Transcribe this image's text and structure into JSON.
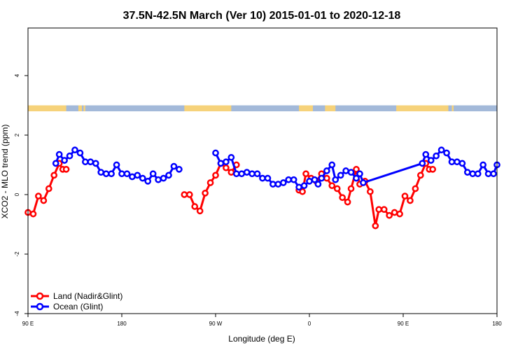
{
  "chart_data": {
    "type": "line",
    "title": "37.5N-42.5N March (Ver 10)   2015-01-01 to 2020-12-18",
    "xlabel": "Longitude (deg E)",
    "ylabel": "XCO2 - MLO trend (ppm)",
    "xlim": [
      -90,
      180
    ],
    "ylim": [
      -4,
      5.6
    ],
    "x_ticks": [
      {
        "value": -90,
        "label": "90 E"
      },
      {
        "value": -36,
        "label": "180"
      },
      {
        "value": 18,
        "label": "90 W"
      },
      {
        "value": 72,
        "label": "0"
      },
      {
        "value": 126,
        "label": "90 E"
      },
      {
        "value": 180,
        "label": "180"
      }
    ],
    "y_ticks": [
      -4,
      -2,
      0,
      2,
      4
    ],
    "grid": false,
    "legend_position": "bottom-left",
    "land_ocean_strip": {
      "y_range": [
        2.8,
        3.0
      ],
      "land_color": "#f6d27a",
      "ocean_color": "#a3b9d9",
      "land_segments": [
        [
          -90,
          -68
        ],
        [
          -61,
          -59
        ],
        [
          -58,
          -57
        ],
        [
          0,
          27
        ],
        [
          66,
          74
        ],
        [
          81,
          87
        ],
        [
          122,
          152
        ],
        [
          154,
          155
        ]
      ]
    },
    "series": [
      {
        "name": "Land (Nadir&Glint)",
        "color": "#ff0000",
        "segments": [
          [
            [
              -90,
              -0.6
            ],
            [
              -87,
              -0.65
            ],
            [
              -84,
              -0.05
            ],
            [
              -81,
              -0.2
            ],
            [
              -78,
              0.2
            ],
            [
              -75,
              0.65
            ],
            [
              -72,
              1.05
            ],
            [
              -70,
              0.85
            ],
            [
              -68,
              0.85
            ]
          ],
          [
            [
              0,
              0.0
            ],
            [
              3,
              0.0
            ],
            [
              6,
              -0.4
            ],
            [
              9,
              -0.55
            ],
            [
              12,
              0.05
            ],
            [
              15,
              0.4
            ],
            [
              18,
              0.65
            ],
            [
              21,
              1.05
            ],
            [
              24,
              0.9
            ],
            [
              27,
              0.75
            ],
            [
              30,
              1.0
            ]
          ],
          [
            [
              66,
              0.15
            ],
            [
              68,
              0.1
            ],
            [
              70,
              0.7
            ],
            [
              73,
              0.55
            ],
            [
              76,
              0.45
            ],
            [
              79,
              0.7
            ],
            [
              82,
              0.55
            ],
            [
              85,
              0.3
            ],
            [
              88,
              0.2
            ],
            [
              91,
              -0.1
            ],
            [
              94,
              -0.25
            ],
            [
              96,
              0.2
            ],
            [
              99,
              0.85
            ],
            [
              101,
              0.35
            ],
            [
              104,
              0.45
            ],
            [
              107,
              0.1
            ],
            [
              110,
              -1.05
            ],
            [
              112,
              -0.5
            ],
            [
              115,
              -0.5
            ],
            [
              118,
              -0.7
            ],
            [
              121,
              -0.6
            ],
            [
              124,
              -0.65
            ],
            [
              127,
              -0.05
            ],
            [
              130,
              -0.2
            ],
            [
              133,
              0.2
            ],
            [
              136,
              0.65
            ],
            [
              139,
              1.05
            ],
            [
              141,
              0.85
            ],
            [
              143,
              0.85
            ]
          ]
        ]
      },
      {
        "name": "Ocean (Glint)",
        "color": "#0000ff",
        "segments": [
          [
            [
              -74,
              1.05
            ],
            [
              -72,
              1.35
            ],
            [
              -69,
              1.15
            ],
            [
              -66,
              1.3
            ],
            [
              -63,
              1.5
            ],
            [
              -60,
              1.4
            ],
            [
              -57,
              1.1
            ],
            [
              -54,
              1.1
            ],
            [
              -51,
              1.05
            ],
            [
              -48,
              0.75
            ],
            [
              -45,
              0.7
            ],
            [
              -42,
              0.7
            ],
            [
              -39,
              1.0
            ],
            [
              -36,
              0.7
            ],
            [
              -33,
              0.7
            ],
            [
              -30,
              0.6
            ],
            [
              -27,
              0.65
            ],
            [
              -24,
              0.55
            ],
            [
              -21,
              0.45
            ],
            [
              -18,
              0.7
            ],
            [
              -15,
              0.5
            ],
            [
              -12,
              0.55
            ],
            [
              -9,
              0.65
            ],
            [
              -6,
              0.95
            ],
            [
              -3,
              0.85
            ]
          ],
          [
            [
              18,
              1.4
            ],
            [
              21,
              1.05
            ],
            [
              24,
              1.1
            ],
            [
              27,
              1.25
            ],
            [
              30,
              0.7
            ],
            [
              33,
              0.7
            ],
            [
              36,
              0.75
            ],
            [
              39,
              0.7
            ],
            [
              42,
              0.7
            ],
            [
              45,
              0.55
            ],
            [
              48,
              0.55
            ],
            [
              51,
              0.35
            ],
            [
              54,
              0.35
            ],
            [
              57,
              0.4
            ],
            [
              60,
              0.5
            ],
            [
              63,
              0.5
            ],
            [
              66,
              0.25
            ],
            [
              69,
              0.3
            ],
            [
              72,
              0.45
            ],
            [
              75,
              0.5
            ],
            [
              77,
              0.35
            ],
            [
              79,
              0.55
            ],
            [
              82,
              0.8
            ],
            [
              85,
              1.0
            ],
            [
              87,
              0.5
            ],
            [
              90,
              0.65
            ],
            [
              93,
              0.8
            ],
            [
              96,
              0.75
            ],
            [
              99,
              0.55
            ],
            [
              101,
              0.7
            ],
            [
              103,
              0.4
            ],
            [
              137,
              1.05
            ],
            [
              139,
              1.35
            ],
            [
              142,
              1.15
            ],
            [
              145,
              1.3
            ],
            [
              148,
              1.5
            ],
            [
              151,
              1.4
            ],
            [
              154,
              1.1
            ],
            [
              157,
              1.1
            ],
            [
              160,
              1.05
            ],
            [
              163,
              0.75
            ],
            [
              166,
              0.7
            ],
            [
              169,
              0.7
            ],
            [
              172,
              1.0
            ],
            [
              175,
              0.7
            ],
            [
              178,
              0.7
            ],
            [
              180,
              1.0
            ]
          ]
        ]
      }
    ]
  }
}
